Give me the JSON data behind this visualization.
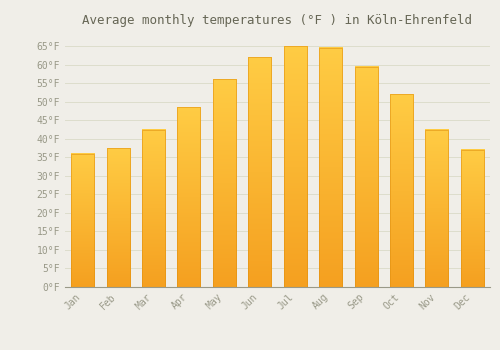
{
  "title": "Average monthly temperatures (°F ) in Köln-Ehrenfeld",
  "months": [
    "Jan",
    "Feb",
    "Mar",
    "Apr",
    "May",
    "Jun",
    "Jul",
    "Aug",
    "Sep",
    "Oct",
    "Nov",
    "Dec"
  ],
  "values": [
    36,
    37.5,
    42.5,
    48.5,
    56,
    62,
    65,
    64.5,
    59.5,
    52,
    42.5,
    37
  ],
  "bar_color_top": "#FFCC44",
  "bar_color_bottom": "#F5A020",
  "background_color": "#F0EEE8",
  "grid_color": "#DDDDCC",
  "text_color": "#999988",
  "title_color": "#666655",
  "ylim": [
    0,
    68
  ],
  "yticks": [
    0,
    5,
    10,
    15,
    20,
    25,
    30,
    35,
    40,
    45,
    50,
    55,
    60,
    65
  ],
  "title_fontsize": 9
}
